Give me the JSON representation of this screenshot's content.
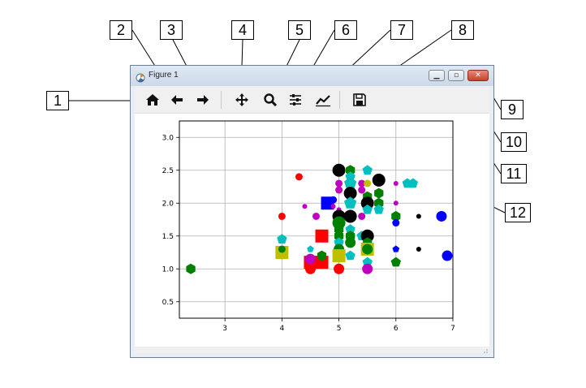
{
  "window": {
    "title": "Figure 1",
    "title_icon": "matplotlib-icon"
  },
  "window_controls": {
    "minimize": "minimize-icon",
    "maximize": "maximize-icon",
    "close": "close-icon"
  },
  "toolbar": {
    "buttons": [
      {
        "id": "home",
        "icon": "home-icon"
      },
      {
        "id": "back",
        "icon": "arrow-left-icon"
      },
      {
        "id": "forward",
        "icon": "arrow-right-icon"
      },
      {
        "id": "pan",
        "icon": "move-icon"
      },
      {
        "id": "zoom",
        "icon": "zoom-icon"
      },
      {
        "id": "subplots",
        "icon": "sliders-icon"
      },
      {
        "id": "edit",
        "icon": "line-chart-icon"
      },
      {
        "id": "save",
        "icon": "save-icon"
      }
    ]
  },
  "callouts": [
    "1",
    "2",
    "3",
    "4",
    "5",
    "6",
    "7",
    "8",
    "9",
    "10",
    "11",
    "12"
  ],
  "chart_data": {
    "type": "scatter",
    "title": "",
    "xlabel": "",
    "ylabel": "",
    "xlim": [
      2.2,
      7.0
    ],
    "ylim": [
      0.25,
      3.25
    ],
    "xticks": [
      "3",
      "4",
      "5",
      "6",
      "7"
    ],
    "yticks": [
      "0.5",
      "1.0",
      "1.5",
      "2.0",
      "2.5",
      "3.0"
    ],
    "grid": true,
    "points": [
      {
        "x": 2.4,
        "y": 1.0,
        "marker": "hexagon",
        "color": "#008000",
        "size": "medium"
      },
      {
        "x": 4.0,
        "y": 1.8,
        "marker": "circle",
        "color": "#ff0000",
        "size": "small"
      },
      {
        "x": 4.0,
        "y": 1.45,
        "marker": "pentagon",
        "color": "#00bfbf",
        "size": "medium"
      },
      {
        "x": 4.0,
        "y": 1.25,
        "marker": "square",
        "color": "#bfbf00",
        "size": "large"
      },
      {
        "x": 4.0,
        "y": 1.3,
        "marker": "circle",
        "color": "#008000",
        "size": "small"
      },
      {
        "x": 4.3,
        "y": 2.4,
        "marker": "circle",
        "color": "#ff0000",
        "size": "small"
      },
      {
        "x": 4.4,
        "y": 1.95,
        "marker": "circle",
        "color": "#bf00bf",
        "size": "tiny"
      },
      {
        "x": 4.5,
        "y": 1.0,
        "marker": "circle",
        "color": "#ff0000",
        "size": "medium"
      },
      {
        "x": 4.5,
        "y": 1.1,
        "marker": "square",
        "color": "#ff0000",
        "size": "large"
      },
      {
        "x": 4.5,
        "y": 1.15,
        "marker": "circle",
        "color": "#bf00bf",
        "size": "medium"
      },
      {
        "x": 4.5,
        "y": 1.3,
        "marker": "pentagon",
        "color": "#00bfbf",
        "size": "small"
      },
      {
        "x": 4.6,
        "y": 1.8,
        "marker": "circle",
        "color": "#bf00bf",
        "size": "small"
      },
      {
        "x": 4.7,
        "y": 1.5,
        "marker": "square",
        "color": "#ff0000",
        "size": "large"
      },
      {
        "x": 4.7,
        "y": 1.1,
        "marker": "square",
        "color": "#ff0000",
        "size": "large"
      },
      {
        "x": 4.7,
        "y": 1.2,
        "marker": "hexagon",
        "color": "#008000",
        "size": "medium"
      },
      {
        "x": 4.8,
        "y": 2.0,
        "marker": "square",
        "color": "#0000ff",
        "size": "large"
      },
      {
        "x": 4.9,
        "y": 2.05,
        "marker": "circle",
        "color": "#0000ff",
        "size": "small"
      },
      {
        "x": 4.9,
        "y": 1.95,
        "marker": "circle",
        "color": "#bf00bf",
        "size": "tiny"
      },
      {
        "x": 5.0,
        "y": 2.5,
        "marker": "circle",
        "color": "#000000",
        "size": "large"
      },
      {
        "x": 5.0,
        "y": 2.3,
        "marker": "circle",
        "color": "#bf00bf",
        "size": "small"
      },
      {
        "x": 5.0,
        "y": 2.2,
        "marker": "circle",
        "color": "#bf00bf",
        "size": "small"
      },
      {
        "x": 5.0,
        "y": 1.9,
        "marker": "circle",
        "color": "#bf00bf",
        "size": "tiny"
      },
      {
        "x": 5.0,
        "y": 1.8,
        "marker": "circle",
        "color": "#000000",
        "size": "large"
      },
      {
        "x": 5.0,
        "y": 1.7,
        "marker": "circle",
        "color": "#008000",
        "size": "large"
      },
      {
        "x": 5.0,
        "y": 1.6,
        "marker": "hexagon",
        "color": "#008000",
        "size": "medium"
      },
      {
        "x": 5.0,
        "y": 1.5,
        "marker": "hexagon",
        "color": "#008000",
        "size": "medium"
      },
      {
        "x": 5.0,
        "y": 1.4,
        "marker": "pentagon",
        "color": "#00bfbf",
        "size": "medium"
      },
      {
        "x": 5.0,
        "y": 1.3,
        "marker": "circle",
        "color": "#008000",
        "size": "medium"
      },
      {
        "x": 5.0,
        "y": 1.2,
        "marker": "square",
        "color": "#bfbf00",
        "size": "large"
      },
      {
        "x": 5.0,
        "y": 1.0,
        "marker": "circle",
        "color": "#ff0000",
        "size": "medium"
      },
      {
        "x": 5.2,
        "y": 2.5,
        "marker": "hexagon",
        "color": "#008000",
        "size": "medium"
      },
      {
        "x": 5.2,
        "y": 2.4,
        "marker": "pentagon",
        "color": "#00bfbf",
        "size": "medium"
      },
      {
        "x": 5.2,
        "y": 2.3,
        "marker": "pentagon",
        "color": "#00bfbf",
        "size": "large"
      },
      {
        "x": 5.2,
        "y": 2.2,
        "marker": "circle",
        "color": "#bfbf00",
        "size": "small"
      },
      {
        "x": 5.2,
        "y": 2.15,
        "marker": "circle",
        "color": "#000000",
        "size": "large"
      },
      {
        "x": 5.2,
        "y": 2.0,
        "marker": "pentagon",
        "color": "#00bfbf",
        "size": "large"
      },
      {
        "x": 5.2,
        "y": 1.8,
        "marker": "circle",
        "color": "#000000",
        "size": "large"
      },
      {
        "x": 5.2,
        "y": 1.6,
        "marker": "pentagon",
        "color": "#00bfbf",
        "size": "medium"
      },
      {
        "x": 5.2,
        "y": 1.5,
        "marker": "hexagon",
        "color": "#008000",
        "size": "medium"
      },
      {
        "x": 5.2,
        "y": 1.4,
        "marker": "circle",
        "color": "#008000",
        "size": "medium"
      },
      {
        "x": 5.2,
        "y": 1.2,
        "marker": "pentagon",
        "color": "#00bfbf",
        "size": "medium"
      },
      {
        "x": 5.4,
        "y": 2.3,
        "marker": "circle",
        "color": "#bf00bf",
        "size": "small"
      },
      {
        "x": 5.4,
        "y": 2.2,
        "marker": "circle",
        "color": "#bf00bf",
        "size": "small"
      },
      {
        "x": 5.4,
        "y": 1.8,
        "marker": "circle",
        "color": "#bf00bf",
        "size": "small"
      },
      {
        "x": 5.4,
        "y": 1.5,
        "marker": "pentagon",
        "color": "#00bfbf",
        "size": "medium"
      },
      {
        "x": 5.5,
        "y": 2.5,
        "marker": "pentagon",
        "color": "#00bfbf",
        "size": "medium"
      },
      {
        "x": 5.5,
        "y": 2.3,
        "marker": "circle",
        "color": "#bfbf00",
        "size": "small"
      },
      {
        "x": 5.5,
        "y": 2.1,
        "marker": "hexagon",
        "color": "#008000",
        "size": "medium"
      },
      {
        "x": 5.5,
        "y": 2.0,
        "marker": "circle",
        "color": "#000000",
        "size": "large"
      },
      {
        "x": 5.5,
        "y": 1.9,
        "marker": "pentagon",
        "color": "#00bfbf",
        "size": "medium"
      },
      {
        "x": 5.5,
        "y": 1.5,
        "marker": "circle",
        "color": "#000000",
        "size": "large"
      },
      {
        "x": 5.5,
        "y": 1.4,
        "marker": "hexagon",
        "color": "#008000",
        "size": "medium"
      },
      {
        "x": 5.5,
        "y": 1.3,
        "marker": "square",
        "color": "#bfbf00",
        "size": "large"
      },
      {
        "x": 5.5,
        "y": 1.3,
        "marker": "circle",
        "color": "#008000",
        "size": "medium"
      },
      {
        "x": 5.5,
        "y": 1.1,
        "marker": "pentagon",
        "color": "#00bfbf",
        "size": "medium"
      },
      {
        "x": 5.5,
        "y": 1.0,
        "marker": "circle",
        "color": "#bf00bf",
        "size": "medium"
      },
      {
        "x": 5.7,
        "y": 2.35,
        "marker": "circle",
        "color": "#000000",
        "size": "large"
      },
      {
        "x": 5.7,
        "y": 2.15,
        "marker": "hexagon",
        "color": "#008000",
        "size": "medium"
      },
      {
        "x": 5.7,
        "y": 2.0,
        "marker": "hexagon",
        "color": "#008000",
        "size": "medium"
      },
      {
        "x": 5.7,
        "y": 1.9,
        "marker": "pentagon",
        "color": "#00bfbf",
        "size": "medium"
      },
      {
        "x": 6.0,
        "y": 2.3,
        "marker": "circle",
        "color": "#bf00bf",
        "size": "tiny"
      },
      {
        "x": 6.0,
        "y": 2.0,
        "marker": "circle",
        "color": "#bf00bf",
        "size": "tiny"
      },
      {
        "x": 6.0,
        "y": 1.8,
        "marker": "hexagon",
        "color": "#008000",
        "size": "medium"
      },
      {
        "x": 6.0,
        "y": 1.7,
        "marker": "circle",
        "color": "#0000ff",
        "size": "small"
      },
      {
        "x": 6.0,
        "y": 1.3,
        "marker": "pentagon",
        "color": "#0000ff",
        "size": "small"
      },
      {
        "x": 6.0,
        "y": 1.1,
        "marker": "pentagon",
        "color": "#008000",
        "size": "medium"
      },
      {
        "x": 6.2,
        "y": 2.3,
        "marker": "pentagon",
        "color": "#00bfbf",
        "size": "medium"
      },
      {
        "x": 6.3,
        "y": 2.3,
        "marker": "pentagon",
        "color": "#00bfbf",
        "size": "medium"
      },
      {
        "x": 6.4,
        "y": 1.8,
        "marker": "circle",
        "color": "#000000",
        "size": "tiny"
      },
      {
        "x": 6.4,
        "y": 1.3,
        "marker": "circle",
        "color": "#000000",
        "size": "tiny"
      },
      {
        "x": 6.8,
        "y": 1.8,
        "marker": "circle",
        "color": "#0000ff",
        "size": "medium"
      },
      {
        "x": 6.9,
        "y": 1.2,
        "marker": "circle",
        "color": "#0000ff",
        "size": "medium"
      }
    ]
  }
}
